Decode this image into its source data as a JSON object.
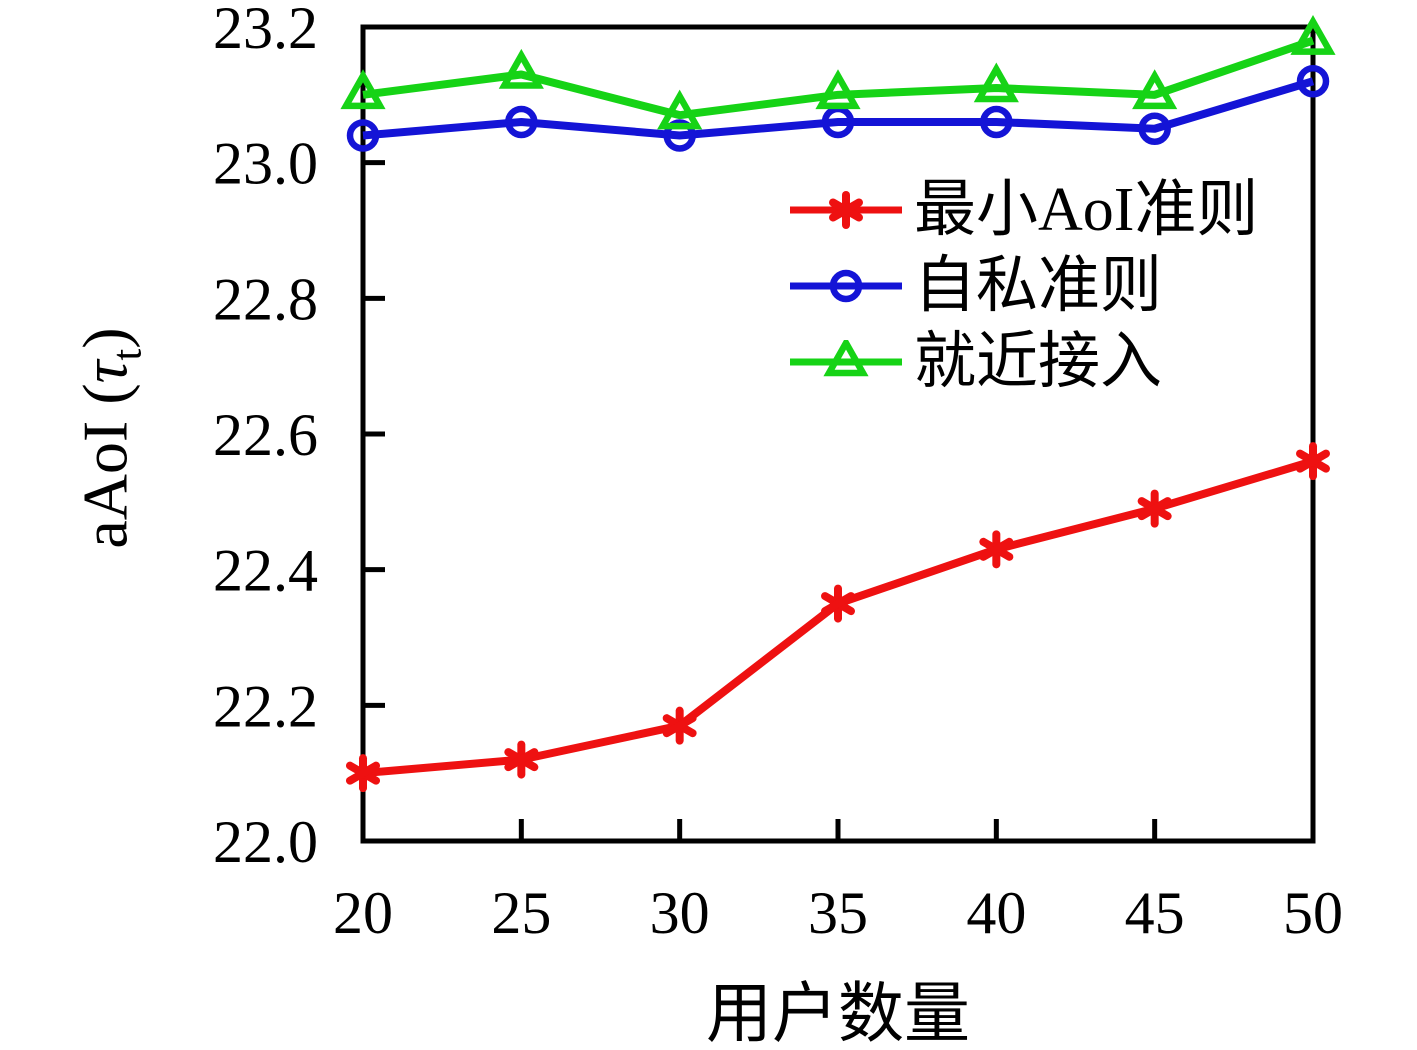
{
  "figure": {
    "background": "#ffffff",
    "y_axis_label": {
      "prefix": "aAoI (",
      "symbol": "τ",
      "subscript": "t",
      "suffix": ")"
    },
    "x_axis_label": "用户数量"
  },
  "chart_data": {
    "type": "line",
    "title": "",
    "xlabel": "用户数量",
    "ylabel": "aAoI (τ_t)",
    "xlim": [
      20,
      50
    ],
    "ylim": [
      22.0,
      23.2
    ],
    "x": [
      20,
      25,
      30,
      35,
      40,
      45,
      50
    ],
    "x_ticks": [
      20,
      25,
      30,
      35,
      40,
      45,
      50
    ],
    "x_tick_labels": [
      "20",
      "25",
      "30",
      "35",
      "40",
      "45",
      "50"
    ],
    "y_ticks": [
      22.0,
      22.2,
      22.4,
      22.6,
      22.8,
      23.0,
      23.2
    ],
    "y_tick_labels": [
      "22.0",
      "22.2",
      "22.4",
      "22.6",
      "22.8",
      "23.0",
      "23.2"
    ],
    "grid": false,
    "legend_position": "upper-right-inside",
    "axis_color": "#000000",
    "series": [
      {
        "id": "min-aoi",
        "name": "最小AoI准则",
        "color": "#ee1111",
        "marker": "asterisk",
        "values": [
          22.1,
          22.12,
          22.17,
          22.35,
          22.43,
          22.49,
          22.56
        ]
      },
      {
        "id": "selfish",
        "name": "自私准则",
        "color": "#1414d6",
        "marker": "circle",
        "values": [
          23.04,
          23.06,
          23.04,
          23.06,
          23.06,
          23.05,
          23.12
        ]
      },
      {
        "id": "nearest",
        "name": "就近接入",
        "color": "#16d316",
        "marker": "triangle",
        "values": [
          23.1,
          23.13,
          23.07,
          23.1,
          23.11,
          23.1,
          23.18
        ]
      }
    ]
  }
}
